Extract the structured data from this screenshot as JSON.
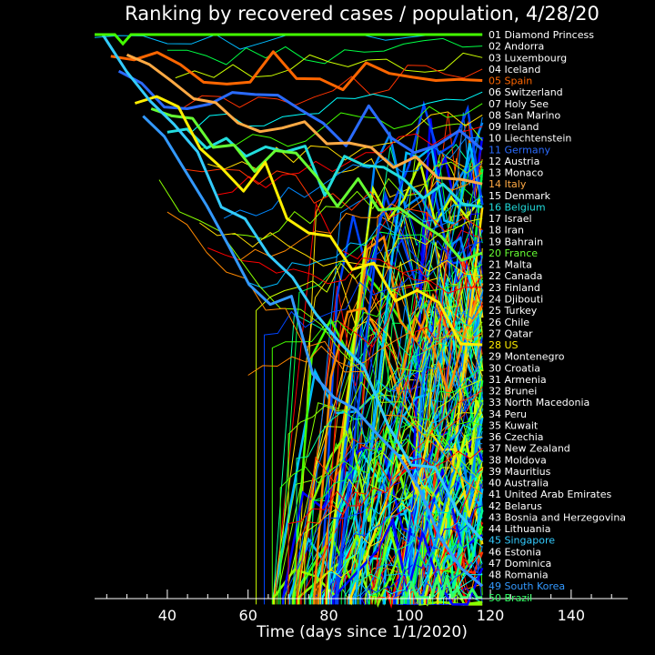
{
  "chart_data": {
    "type": "line",
    "title": "Ranking by recovered cases / population, 4/28/20",
    "xlabel": "Time (days since 1/1/2020)",
    "ylabel": "",
    "xlim": [
      22,
      154
    ],
    "ylim": [
      50.5,
      0.5
    ],
    "x_ticks": [
      40,
      60,
      80,
      100,
      120,
      140
    ],
    "x_tick_labels": [
      "40",
      "60",
      "80",
      "100",
      "120",
      "140"
    ],
    "grid": false,
    "legend_placement": "right",
    "highlight_colors": {
      "Spain": "#ff6600",
      "Germany": "#2a6bff",
      "Italy": "#ffaa44",
      "Belgium": "#22dddd",
      "France": "#66ff33",
      "US": "#ffee00",
      "Singapore": "#33ccff",
      "South Korea": "#3399ff",
      "Brazil": "#33ff66"
    },
    "series": [
      {
        "rank": 1,
        "label": "01 Diamond Princess",
        "name": "Diamond Princess",
        "color": "#ffffff",
        "first_day": 22,
        "start_rank": 1
      },
      {
        "rank": 2,
        "label": "02 Andorra",
        "name": "Andorra",
        "color": "#ffffff",
        "first_day": 40,
        "start_rank": 3
      },
      {
        "rank": 3,
        "label": "03 Luxembourg",
        "name": "Luxembourg",
        "color": "#ffffff",
        "first_day": 42,
        "start_rank": 5
      },
      {
        "rank": 4,
        "label": "04 Iceland",
        "name": "Iceland",
        "color": "#ffffff",
        "first_day": 44,
        "start_rank": 7
      },
      {
        "rank": 5,
        "label": "05 Spain",
        "name": "Spain",
        "color": "#ff6600",
        "first_day": 26,
        "start_rank": 3
      },
      {
        "rank": 6,
        "label": "06 Switzerland",
        "name": "Switzerland",
        "color": "#ffffff",
        "first_day": 46,
        "start_rank": 9
      },
      {
        "rank": 7,
        "label": "07 Holy See",
        "name": "Holy See",
        "color": "#ffffff",
        "first_day": 48,
        "start_rank": 11
      },
      {
        "rank": 8,
        "label": "08 San Marino",
        "name": "San Marino",
        "color": "#ffffff",
        "first_day": 50,
        "start_rank": 13
      },
      {
        "rank": 9,
        "label": "09 Ireland",
        "name": "Ireland",
        "color": "#ffffff",
        "first_day": 52,
        "start_rank": 15
      },
      {
        "rank": 10,
        "label": "10 Liechtenstein",
        "name": "Liechtenstein",
        "color": "#ffffff",
        "first_day": 54,
        "start_rank": 17
      },
      {
        "rank": 11,
        "label": "11 Germany",
        "name": "Germany",
        "color": "#2a6bff",
        "first_day": 28,
        "start_rank": 5
      },
      {
        "rank": 12,
        "label": "12 Austria",
        "name": "Austria",
        "color": "#ffffff",
        "first_day": 56,
        "start_rank": 19
      },
      {
        "rank": 13,
        "label": "13 Monaco",
        "name": "Monaco",
        "color": "#ffffff",
        "first_day": 58,
        "start_rank": 21
      },
      {
        "rank": 14,
        "label": "14 Italy",
        "name": "Italy",
        "color": "#ffaa44",
        "first_day": 30,
        "start_rank": 4
      },
      {
        "rank": 15,
        "label": "15 Denmark",
        "name": "Denmark",
        "color": "#ffffff",
        "first_day": 60,
        "start_rank": 23
      },
      {
        "rank": 16,
        "label": "16 Belgium",
        "name": "Belgium",
        "color": "#22dddd",
        "first_day": 40,
        "start_rank": 10
      },
      {
        "rank": 17,
        "label": "17 Israel",
        "name": "Israel",
        "color": "#ffffff",
        "first_day": 62,
        "start_rank": 25
      },
      {
        "rank": 18,
        "label": "18 Iran",
        "name": "Iran",
        "color": "#ffffff",
        "first_day": 44,
        "start_rank": 12
      },
      {
        "rank": 19,
        "label": "19 Bahrain",
        "name": "Bahrain",
        "color": "#ffffff",
        "first_day": 64,
        "start_rank": 27
      },
      {
        "rank": 20,
        "label": "20 France",
        "name": "France",
        "color": "#66ff33",
        "first_day": 36,
        "start_rank": 8
      },
      {
        "rank": 21,
        "label": "21 Malta",
        "name": "Malta",
        "color": "#ffffff",
        "first_day": 66,
        "start_rank": 29
      },
      {
        "rank": 22,
        "label": "22 Canada",
        "name": "Canada",
        "color": "#ffffff",
        "first_day": 48,
        "start_rank": 18
      },
      {
        "rank": 23,
        "label": "23 Finland",
        "name": "Finland",
        "color": "#ffffff",
        "first_day": 50,
        "start_rank": 20
      },
      {
        "rank": 24,
        "label": "24 Djibouti",
        "name": "Djibouti",
        "color": "#ffffff",
        "first_day": 80,
        "start_rank": 40
      },
      {
        "rank": 25,
        "label": "25 Turkey",
        "name": "Turkey",
        "color": "#ffffff",
        "first_day": 72,
        "start_rank": 38
      },
      {
        "rank": 26,
        "label": "26 Chile",
        "name": "Chile",
        "color": "#ffffff",
        "first_day": 70,
        "start_rank": 36
      },
      {
        "rank": 27,
        "label": "27 Qatar",
        "name": "Qatar",
        "color": "#ffffff",
        "first_day": 60,
        "start_rank": 30
      },
      {
        "rank": 28,
        "label": "28 US",
        "name": "US",
        "color": "#ffee00",
        "first_day": 32,
        "start_rank": 6
      },
      {
        "rank": 29,
        "label": "29 Montenegro",
        "name": "Montenegro",
        "color": "#ffffff",
        "first_day": 84,
        "start_rank": 46
      },
      {
        "rank": 30,
        "label": "30 Croatia",
        "name": "Croatia",
        "color": "#ffffff",
        "first_day": 76,
        "start_rank": 42
      },
      {
        "rank": 31,
        "label": "31 Armenia",
        "name": "Armenia",
        "color": "#ffffff",
        "first_day": 74,
        "start_rank": 44
      },
      {
        "rank": 32,
        "label": "32 Brunei",
        "name": "Brunei",
        "color": "#ffffff",
        "first_day": 72,
        "start_rank": 45
      },
      {
        "rank": 33,
        "label": "33 North Macedonia",
        "name": "North Macedonia",
        "color": "#ffffff",
        "first_day": 82,
        "start_rank": 47
      },
      {
        "rank": 34,
        "label": "34 Peru",
        "name": "Peru",
        "color": "#ffffff",
        "first_day": 80,
        "start_rank": 48
      },
      {
        "rank": 35,
        "label": "35 Kuwait",
        "name": "Kuwait",
        "color": "#ffffff",
        "first_day": 68,
        "start_rank": 40
      },
      {
        "rank": 36,
        "label": "36 Czechia",
        "name": "Czechia",
        "color": "#ffffff",
        "first_day": 78,
        "start_rank": 49
      },
      {
        "rank": 37,
        "label": "37 New Zealand",
        "name": "New Zealand",
        "color": "#ffffff",
        "first_day": 70,
        "start_rank": 43
      },
      {
        "rank": 38,
        "label": "38 Moldova",
        "name": "Moldova",
        "color": "#ffffff",
        "first_day": 86,
        "start_rank": 50
      },
      {
        "rank": 39,
        "label": "39 Mauritius",
        "name": "Mauritius",
        "color": "#ffffff",
        "first_day": 84,
        "start_rank": 50
      },
      {
        "rank": 40,
        "label": "40 Australia",
        "name": "Australia",
        "color": "#ffffff",
        "first_day": 38,
        "start_rank": 14
      },
      {
        "rank": 41,
        "label": "41 United Arab Emirates",
        "name": "United Arab Emirates",
        "color": "#ffffff",
        "first_day": 40,
        "start_rank": 16
      },
      {
        "rank": 42,
        "label": "42 Belarus",
        "name": "Belarus",
        "color": "#ffffff",
        "first_day": 88,
        "start_rank": 50
      },
      {
        "rank": 43,
        "label": "43 Bosnia and Herzegovina",
        "name": "Bosnia and Herzegovina",
        "color": "#ffffff",
        "first_day": 86,
        "start_rank": 50
      },
      {
        "rank": 44,
        "label": "44 Lithuania",
        "name": "Lithuania",
        "color": "#ffffff",
        "first_day": 90,
        "start_rank": 50
      },
      {
        "rank": 45,
        "label": "45 Singapore",
        "name": "Singapore",
        "color": "#33ccff",
        "first_day": 24,
        "start_rank": 2
      },
      {
        "rank": 46,
        "label": "46 Estonia",
        "name": "Estonia",
        "color": "#ffffff",
        "first_day": 92,
        "start_rank": 50
      },
      {
        "rank": 47,
        "label": "47 Dominica",
        "name": "Dominica",
        "color": "#ffffff",
        "first_day": 96,
        "start_rank": 50
      },
      {
        "rank": 48,
        "label": "48 Romania",
        "name": "Romania",
        "color": "#ffffff",
        "first_day": 94,
        "start_rank": 50
      },
      {
        "rank": 49,
        "label": "49 South Korea",
        "name": "South Korea",
        "color": "#3399ff",
        "first_day": 34,
        "start_rank": 8
      },
      {
        "rank": 50,
        "label": "50 Brazil",
        "name": "Brazil",
        "color": "#33ff66",
        "first_day": 98,
        "start_rank": 50
      }
    ]
  }
}
